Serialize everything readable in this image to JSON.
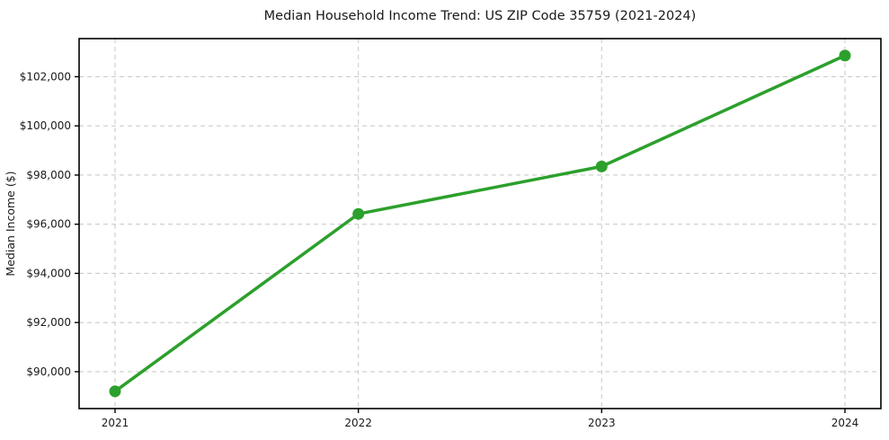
{
  "chart_data": {
    "type": "line",
    "title": "Median Household Income Trend: US ZIP Code 35759 (2021-2024)",
    "xlabel": "",
    "ylabel": "Median Income ($)",
    "categories": [
      "2021",
      "2022",
      "2023",
      "2024"
    ],
    "series": [
      {
        "name": "Median Household Income",
        "values": [
          89200,
          96420,
          98350,
          102860
        ]
      }
    ],
    "yticks": [
      90000,
      92000,
      94000,
      96000,
      98000,
      100000,
      102000
    ],
    "ytick_labels": [
      "$90,000",
      "$92,000",
      "$94,000",
      "$96,000",
      "$98,000",
      "$100,000",
      "$102,000"
    ],
    "ylim": [
      88500,
      103550
    ],
    "grid": "dashed-both-axes",
    "legend": "none",
    "colors": {
      "line": "#2ca02c",
      "marker": "#2ca02c",
      "grid": "#cccccc",
      "spine": "#000000",
      "text": "#1a1a1a",
      "background": "#ffffff"
    }
  }
}
